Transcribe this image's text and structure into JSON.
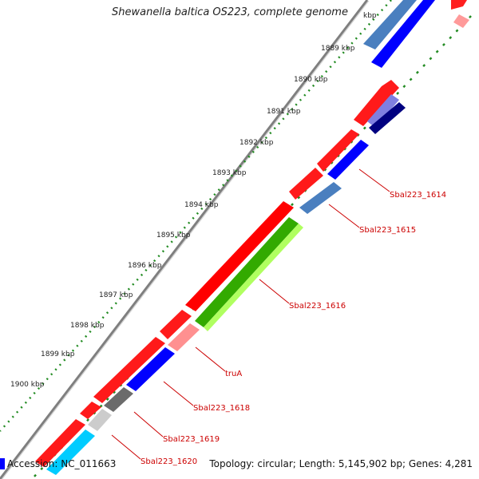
{
  "title": "Shewanella baltica OS223, complete genome",
  "title_cut_tick": "kbp",
  "ticks": [
    "1889 kbp",
    "1890 kbp",
    "1891 kbp",
    "1892 kbp",
    "1893 kbp",
    "1894 kbp",
    "1895 kbp",
    "1896 kbp",
    "1897 kbp",
    "1898 kbp",
    "1899 kbp",
    "1900 kbp"
  ],
  "gene_labels": [
    "Sbal223_1614",
    "Sbal223_1615",
    "Sbal223_1616",
    "truA",
    "Sbal223_1618",
    "Sbal223_1619",
    "Sbal223_1620"
  ],
  "footer": {
    "accession": "Accession: NC_011663",
    "summary": "Topology: circular; Length: 5,145,902 bp; Genes: 4,281"
  },
  "colors": {
    "forward_cds": "#ff0000",
    "reverse_cds": "#0000ff",
    "label": "#cc0000",
    "tick_dots": "#228b22"
  }
}
